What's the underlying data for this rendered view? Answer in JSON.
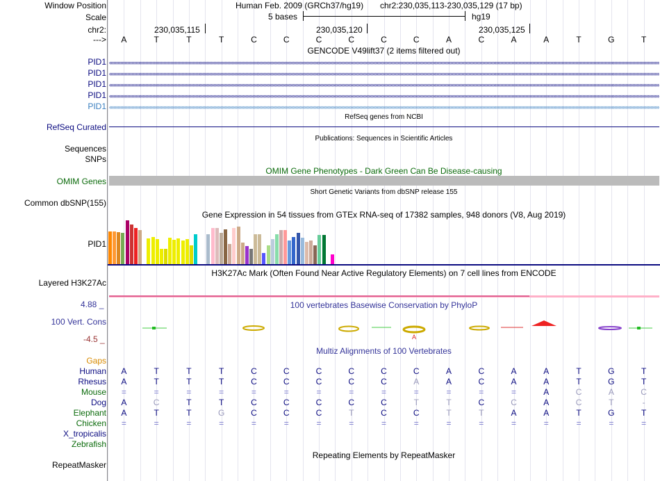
{
  "header": {
    "window_position_label": "Window Position",
    "assembly": "Human Feb. 2009 (GRCh37/hg19)",
    "position": "chr2:230,035,113-230,035,129 (17 bp)",
    "scale_label": "Scale",
    "scale_text": "5 bases",
    "scale_db": "hg19",
    "chrom_label": "chr2:",
    "coord_1": "230,035,115",
    "coord_2": "230,035,120",
    "coord_3": "230,035,125",
    "strand_label": "--->"
  },
  "reference_bases": [
    "A",
    "T",
    "T",
    "T",
    "C",
    "C",
    "C",
    "C",
    "C",
    "C",
    "A",
    "C",
    "A",
    "A",
    "T",
    "G",
    "T"
  ],
  "gencode": {
    "title": "GENCODE V49lift37 (2 items filtered out)",
    "items": [
      "PID1",
      "PID1",
      "PID1",
      "PID1",
      "PID1"
    ]
  },
  "refseq": {
    "title": "RefSeq genes from NCBI",
    "label": "RefSeq Curated"
  },
  "publications": {
    "title": "Publications: Sequences in Scientific Articles",
    "label_1": "Sequences",
    "label_2": "SNPs"
  },
  "omim": {
    "title": "OMIM Gene Phenotypes - Dark Green Can Be Disease-causing",
    "label": "OMIM Genes"
  },
  "dbsnp": {
    "title": "Short Genetic Variants from dbSNP release 155",
    "label": "Common dbSNP(155)"
  },
  "gtex": {
    "title": "Gene Expression in 54 tissues from GTEx RNA-seq of 17382 samples, 948 donors (V8, Aug 2019)",
    "label": "PID1",
    "chart_data": {
      "type": "bar",
      "title": "Gene Expression in 54 tissues from GTEx RNA-seq of 17382 samples, 948 donors (V8, Aug 2019)",
      "xlabel": "",
      "ylabel": "",
      "ylim": [
        0,
        64
      ],
      "values": [
        47,
        47,
        46,
        45,
        63,
        57,
        52,
        49,
        0,
        37,
        39,
        36,
        22,
        22,
        38,
        35,
        37,
        34,
        36,
        27,
        43,
        0,
        0,
        43,
        52,
        52,
        45,
        50,
        29,
        52,
        54,
        31,
        26,
        22,
        43,
        43,
        16,
        27,
        36,
        43,
        49,
        49,
        34,
        39,
        45,
        38,
        32,
        34,
        27,
        42,
        42,
        0,
        14,
        0
      ],
      "colors": [
        "#ff8800",
        "#ff9933",
        "#dd8822",
        "#77aa55",
        "#aa0066",
        "#cc3333",
        "#ee2222",
        "#ccaa88",
        "#ffffff",
        "#eeee00",
        "#eeee00",
        "#eeee00",
        "#eeee00",
        "#dddd00",
        "#eeee00",
        "#eeee00",
        "#eeee00",
        "#eeee00",
        "#eeee00",
        "#dddd00",
        "#00cccc",
        "#ffffff",
        "#ffffff",
        "#aabbcc",
        "#ffbbcc",
        "#ddbbbb",
        "#bbaa99",
        "#886644",
        "#ccaa99",
        "#ffcccc",
        "#ccaa88",
        "#ccaa88",
        "#9933cc",
        "#777777",
        "#ccbb99",
        "#ccbb99",
        "#5555ff",
        "#aadd88",
        "#bbccdd",
        "#88ddaa",
        "#ccaaaa",
        "#ff9999",
        "#6699dd",
        "#3366cc",
        "#3355aa",
        "#99bbdd",
        "#ddbbaa",
        "#ccaa99",
        "#886655",
        "#66cc99",
        "#007733",
        "#ffffff",
        "#ff00cc",
        "#ffffff"
      ]
    }
  },
  "h3k27ac": {
    "title": "H3K27Ac Mark (Often Found Near Active Regulatory Elements) on 7 cell lines from ENCODE",
    "label": "Layered H3K27Ac"
  },
  "phylop": {
    "title": "100 vertebrates Basewise Conservation by PhyloP",
    "label": "100 Vert. Cons",
    "max_label": "4.88 _",
    "min_label": "-4.5 _"
  },
  "multiz": {
    "title": "Multiz Alignments of 100 Vertebrates",
    "gaps_label": "Gaps",
    "species": [
      {
        "name": "Human",
        "bases": [
          "A",
          "T",
          "T",
          "T",
          "C",
          "C",
          "C",
          "C",
          "C",
          "C",
          "A",
          "C",
          "A",
          "A",
          "T",
          "G",
          "T"
        ]
      },
      {
        "name": "Rhesus",
        "bases": [
          "A",
          "T",
          "T",
          "T",
          "C",
          "C",
          "C",
          "C",
          "C",
          "A",
          "A",
          "C",
          "A",
          "A",
          "T",
          "G",
          "T"
        ]
      },
      {
        "name": "Mouse",
        "bases": [
          "=",
          "=",
          "=",
          "=",
          "=",
          "=",
          "=",
          "=",
          "=",
          "=",
          "=",
          "=",
          "=",
          "A",
          "C",
          "A",
          "C"
        ]
      },
      {
        "name": "Dog",
        "bases": [
          "A",
          "C",
          "T",
          "T",
          "C",
          "C",
          "C",
          "C",
          "C",
          "T",
          "T",
          "C",
          "C",
          "A",
          "C",
          "T",
          "-"
        ]
      },
      {
        "name": "Elephant",
        "bases": [
          "A",
          "T",
          "T",
          "G",
          "C",
          "C",
          "C",
          "T",
          "C",
          "C",
          "T",
          "T",
          "A",
          "A",
          "T",
          "G",
          "T"
        ]
      },
      {
        "name": "Chicken",
        "bases": [
          "=",
          "=",
          "=",
          "=",
          "=",
          "=",
          "=",
          "=",
          "=",
          "=",
          "=",
          "=",
          "=",
          "=",
          "=",
          "=",
          "="
        ]
      },
      {
        "name": "X_tropicalis",
        "bases": []
      },
      {
        "name": "Zebrafish",
        "bases": []
      }
    ]
  },
  "repeatmasker": {
    "title": "Repeating Elements by RepeatMasker",
    "label": "RepeatMasker"
  },
  "colors": {
    "gene_blue": "#0a0a80",
    "omim_green": "#0a6a0a",
    "gaps_orange": "#d88a00",
    "conserv_blue": "#333399",
    "phylop_red": "#993333"
  }
}
